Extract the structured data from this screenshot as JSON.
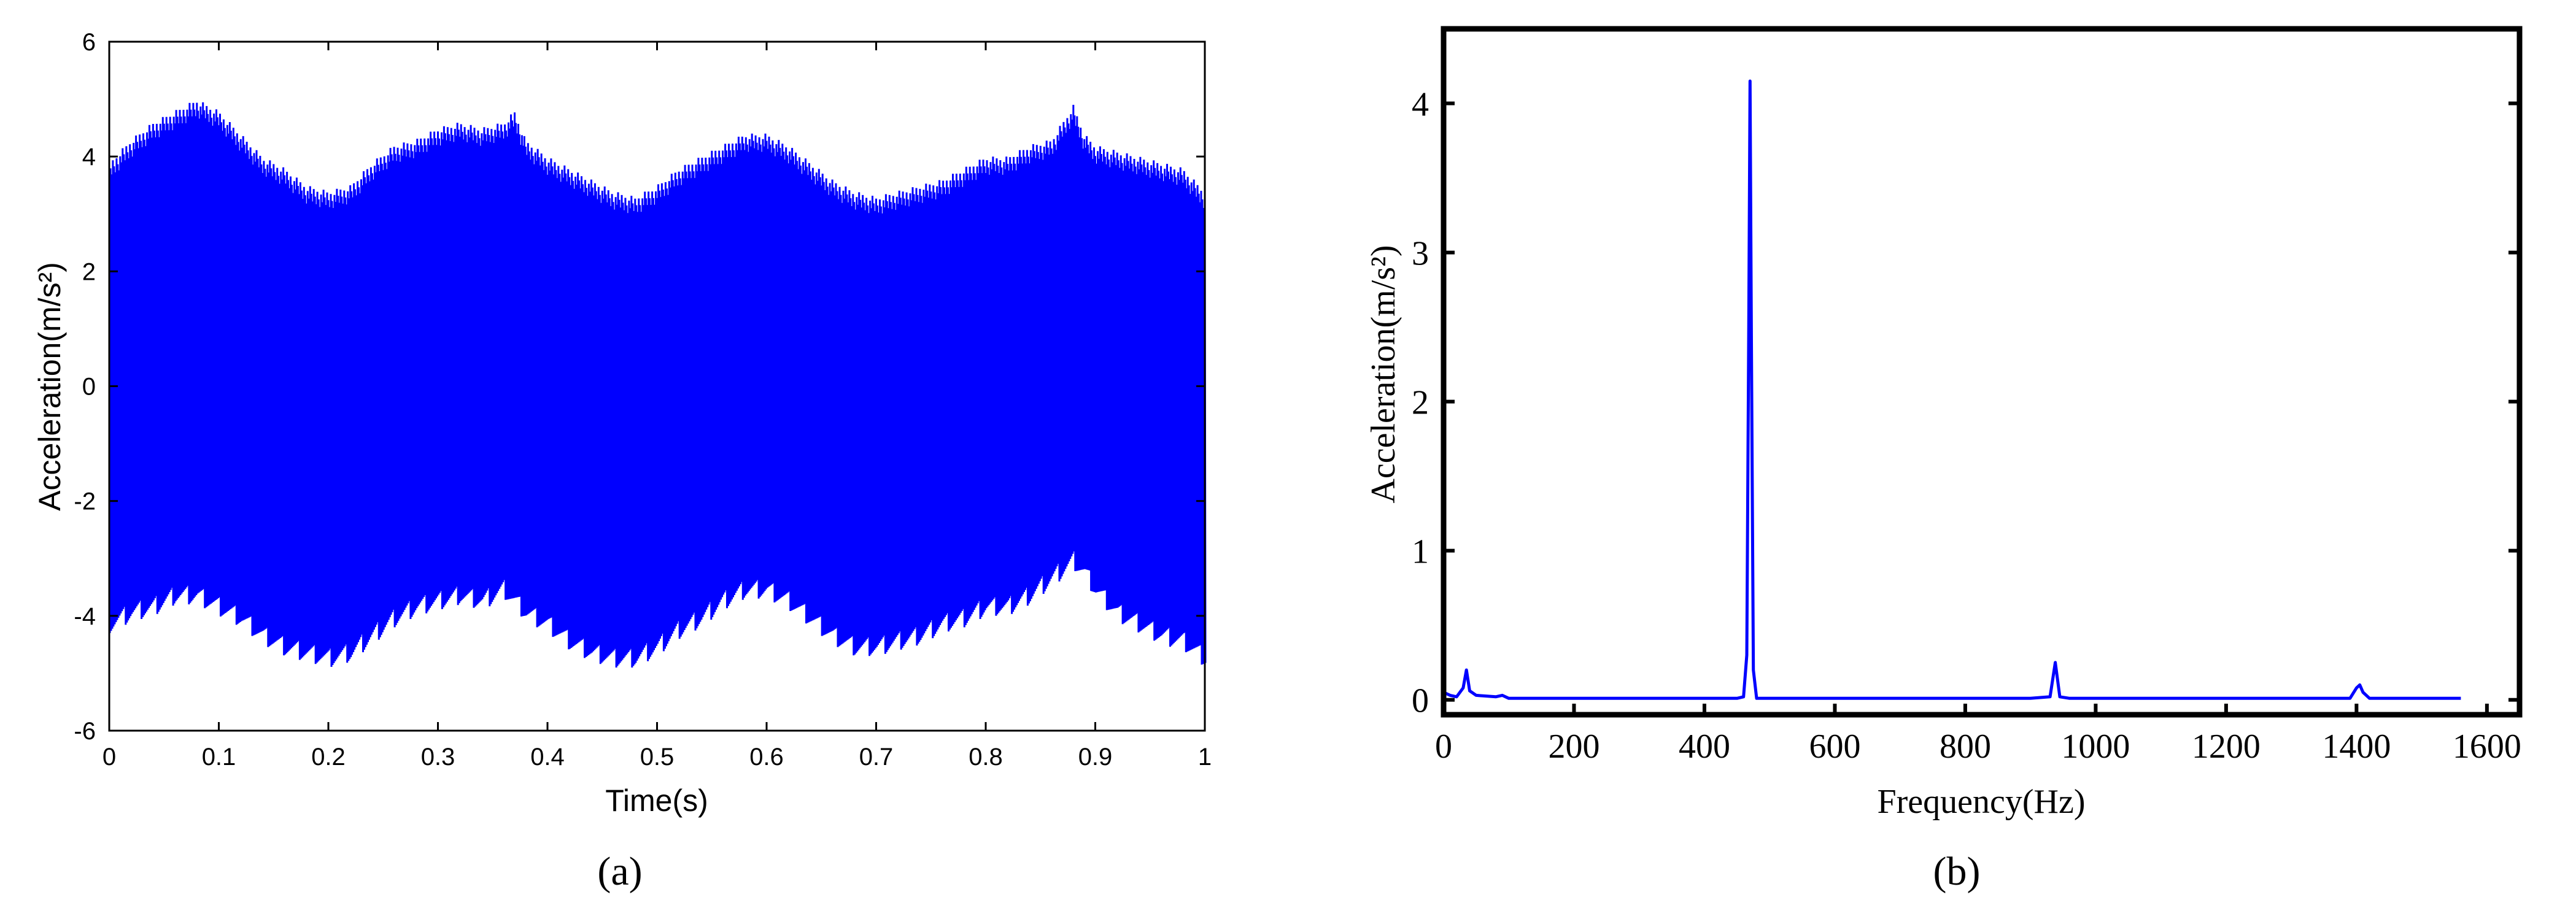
{
  "chart_data": [
    {
      "type": "line",
      "panel_label": "(a)",
      "xlabel": "Time(s)",
      "ylabel": "Acceleration(m/s²)",
      "xlim": [
        0,
        1
      ],
      "ylim": [
        -6,
        6
      ],
      "xticks": [
        "0",
        "0.1",
        "0.2",
        "0.3",
        "0.4",
        "0.5",
        "0.6",
        "0.7",
        "0.8",
        "0.9",
        "1"
      ],
      "yticks": [
        "6",
        "4",
        "2",
        "0",
        "-2",
        "-4",
        "-6"
      ],
      "grid": false,
      "color": "#0000ff",
      "envelope": {
        "x": [
          0,
          0.02,
          0.04,
          0.06,
          0.08,
          0.1,
          0.12,
          0.14,
          0.16,
          0.18,
          0.2,
          0.22,
          0.24,
          0.26,
          0.28,
          0.3,
          0.32,
          0.34,
          0.36,
          0.37,
          0.38,
          0.4,
          0.42,
          0.44,
          0.46,
          0.48,
          0.5,
          0.52,
          0.54,
          0.56,
          0.58,
          0.6,
          0.62,
          0.64,
          0.66,
          0.68,
          0.7,
          0.72,
          0.74,
          0.76,
          0.78,
          0.8,
          0.82,
          0.84,
          0.86,
          0.88,
          0.89,
          0.9,
          0.92,
          0.94,
          0.96,
          0.98,
          1.0
        ],
        "upper": [
          3.9,
          4.3,
          4.6,
          4.8,
          5.0,
          4.8,
          4.4,
          4.0,
          3.8,
          3.5,
          3.4,
          3.5,
          3.9,
          4.2,
          4.3,
          4.5,
          4.6,
          4.5,
          4.6,
          4.8,
          4.3,
          4.0,
          3.8,
          3.6,
          3.4,
          3.3,
          3.5,
          3.8,
          4.0,
          4.2,
          4.4,
          4.4,
          4.2,
          3.9,
          3.6,
          3.4,
          3.3,
          3.4,
          3.5,
          3.6,
          3.8,
          4.0,
          4.0,
          4.2,
          4.3,
          4.9,
          4.4,
          4.2,
          4.1,
          4.0,
          3.9,
          3.8,
          3.4
        ],
        "lower": [
          -4.3,
          -4.1,
          -4.0,
          -3.8,
          -3.8,
          -4.0,
          -4.2,
          -4.5,
          -4.7,
          -4.8,
          -4.9,
          -4.8,
          -4.5,
          -4.2,
          -4.0,
          -3.9,
          -3.8,
          -3.9,
          -3.7,
          -3.9,
          -4.1,
          -4.3,
          -4.6,
          -4.8,
          -4.9,
          -4.9,
          -4.7,
          -4.4,
          -4.2,
          -3.9,
          -3.7,
          -3.7,
          -3.9,
          -4.2,
          -4.5,
          -4.7,
          -4.7,
          -4.6,
          -4.5,
          -4.3,
          -4.2,
          -4.0,
          -4.0,
          -3.8,
          -3.5,
          -3.2,
          -3.4,
          -3.7,
          -4.1,
          -4.3,
          -4.5,
          -4.6,
          -4.9
        ]
      }
    },
    {
      "type": "line",
      "panel_label": "(b)",
      "xlabel": "Frequency(Hz)",
      "ylabel": "Acceleration(m/s²)",
      "xlim": [
        0,
        1650
      ],
      "ylim": [
        -0.1,
        4.5
      ],
      "xticks": [
        "0",
        "200",
        "400",
        "600",
        "800",
        "1000",
        "1200",
        "1400",
        "1600"
      ],
      "yticks": [
        "0",
        "1",
        "2",
        "3",
        "4"
      ],
      "grid": false,
      "color": "#0000ff",
      "x": [
        0,
        10,
        20,
        30,
        35,
        40,
        50,
        80,
        90,
        100,
        200,
        300,
        400,
        450,
        460,
        465,
        468,
        470,
        472,
        475,
        480,
        500,
        600,
        700,
        800,
        900,
        930,
        938,
        945,
        960,
        1000,
        1200,
        1390,
        1400,
        1405,
        1410,
        1420,
        1500,
        1560
      ],
      "y": [
        0.05,
        0.03,
        0.02,
        0.08,
        0.2,
        0.06,
        0.03,
        0.02,
        0.03,
        0.01,
        0.01,
        0.01,
        0.01,
        0.01,
        0.02,
        0.3,
        2.5,
        4.15,
        2.4,
        0.2,
        0.01,
        0.01,
        0.01,
        0.01,
        0.01,
        0.01,
        0.02,
        0.25,
        0.02,
        0.01,
        0.01,
        0.01,
        0.01,
        0.08,
        0.1,
        0.05,
        0.01,
        0.01,
        0.01
      ]
    }
  ]
}
